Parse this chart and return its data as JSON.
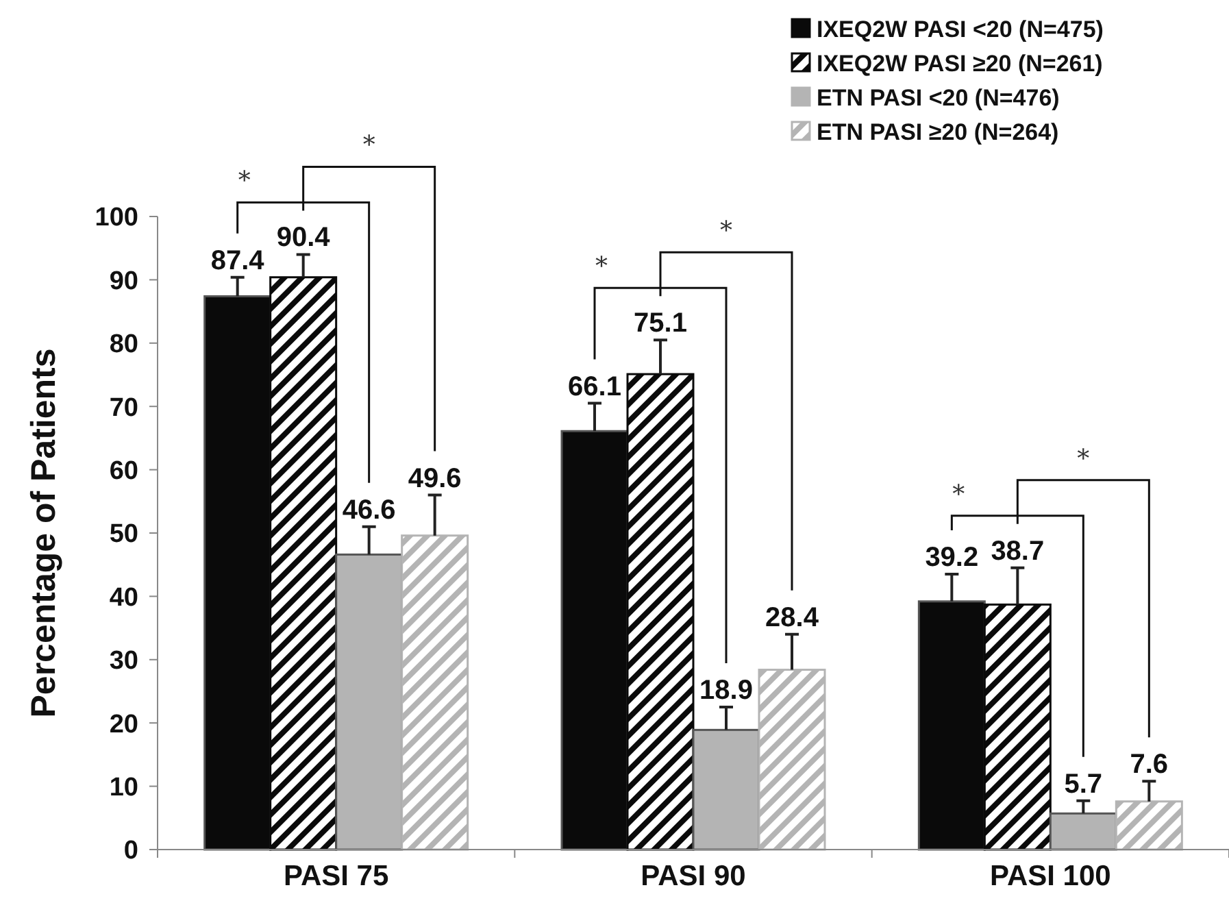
{
  "chart_data": {
    "type": "bar",
    "ylabel": "Percentage of Patients",
    "categories": [
      "PASI 75",
      "PASI 90",
      "PASI 100"
    ],
    "series": [
      {
        "name": "IXEQ2W PASI <20 (N=475)",
        "color": "#0a0a0a",
        "values": [
          87.4,
          66.1,
          39.2
        ],
        "errors": [
          [
            87.4,
            90.4
          ],
          [
            66.1,
            70.5
          ],
          [
            39.2,
            43.5
          ]
        ]
      },
      {
        "name": "IXEQ2W PASI ≥20 (N=261)",
        "color": "#0a0a0a",
        "values": [
          90.4,
          75.1,
          38.7
        ],
        "errors": [
          [
            90.4,
            94
          ],
          [
            75.1,
            80.5
          ],
          [
            38.7,
            44.5
          ]
        ]
      },
      {
        "name": "ETN PASI <20 (N=476)",
        "color": "#b4b4b4",
        "values": [
          46.6,
          18.9,
          5.7
        ],
        "errors": [
          [
            46.6,
            51
          ],
          [
            18.9,
            22.5
          ],
          [
            5.7,
            7.7
          ]
        ]
      },
      {
        "name": "ETN PASI ≥20 (N=264)",
        "color": "#b4b4b4",
        "values": [
          49.6,
          28.4,
          7.6
        ],
        "errors": [
          [
            49.6,
            56
          ],
          [
            28.4,
            34
          ],
          [
            7.6,
            10.8
          ]
        ]
      }
    ],
    "ylim": [
      0,
      100
    ],
    "yticks": [
      0,
      10,
      20,
      30,
      40,
      50,
      60,
      70,
      80,
      90,
      100
    ],
    "data_labels": true,
    "grid": false,
    "legend": "top right",
    "annotations": [
      "*",
      "*",
      "*",
      "*",
      "*",
      "*"
    ]
  }
}
